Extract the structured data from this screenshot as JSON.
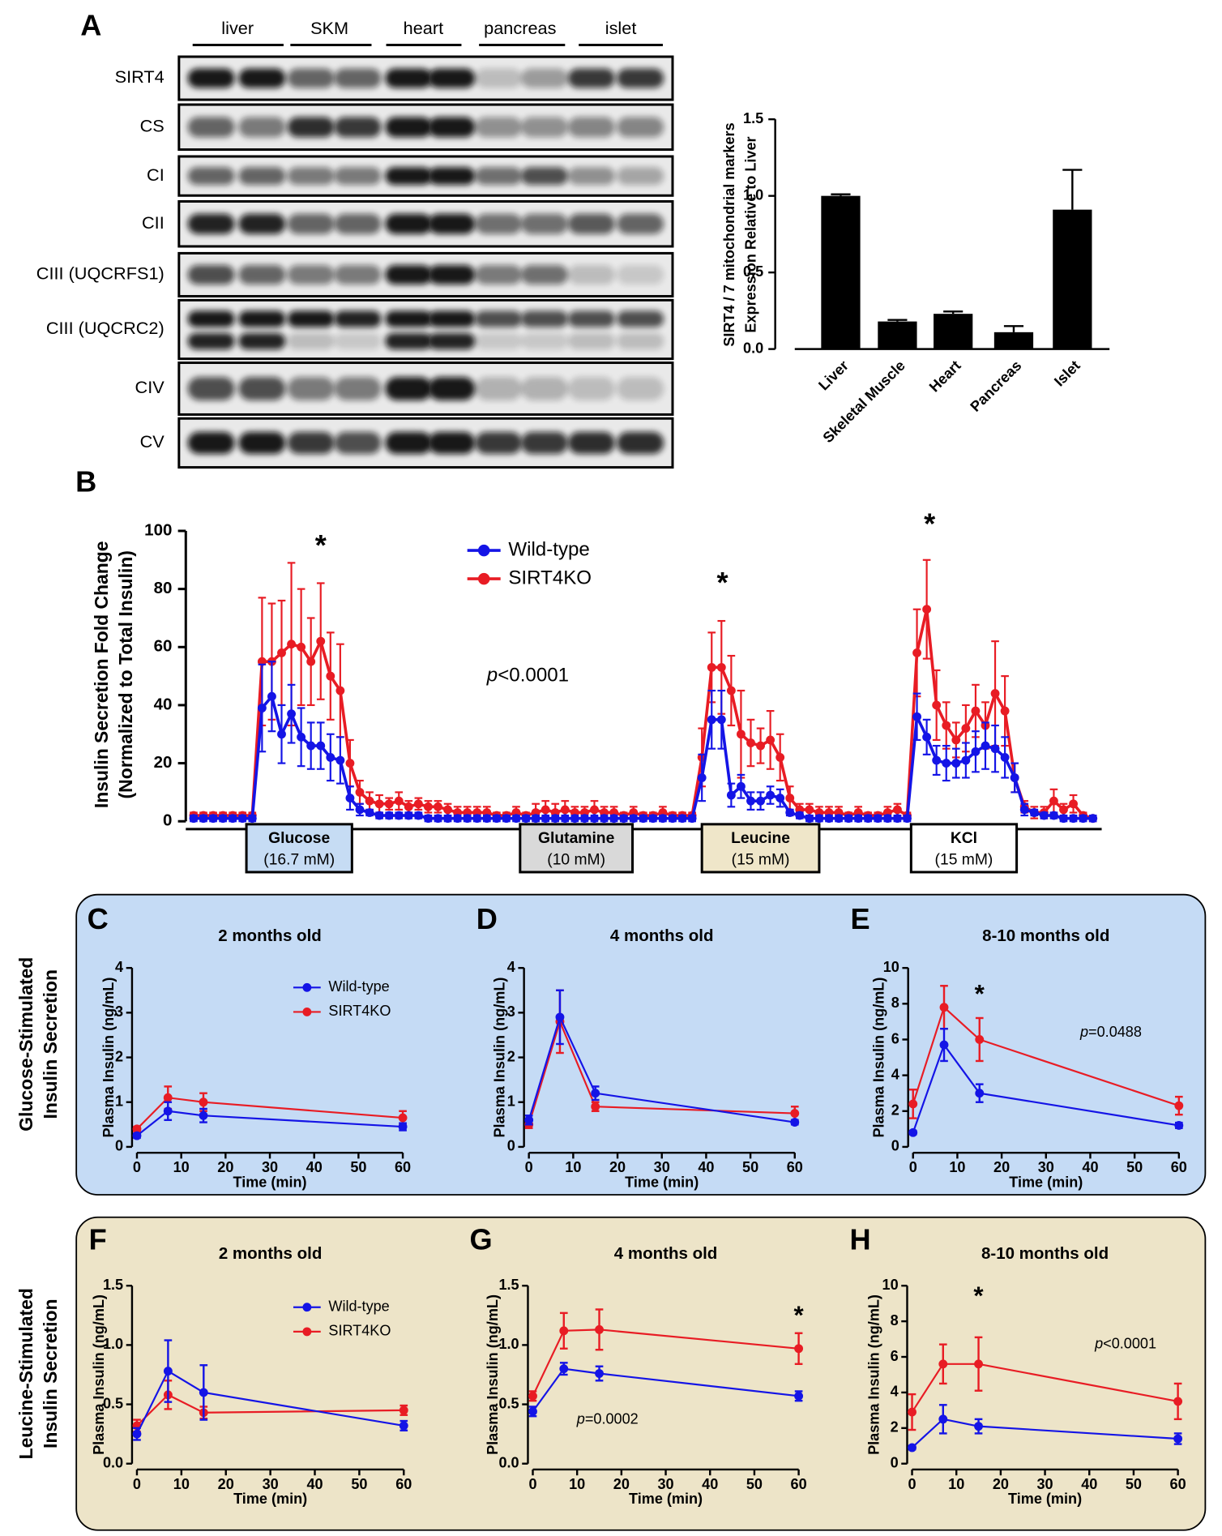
{
  "blot": {
    "panel_label": "A",
    "tissues": [
      "liver",
      "SKM",
      "heart",
      "pancreas",
      "islet"
    ],
    "proteins": [
      "SIRT4",
      "CS",
      "CI",
      "CII",
      "CIII (UQCRFS1)",
      "CIII (UQCRC2)",
      "CIV",
      "CV"
    ]
  },
  "groups": [
    {
      "lines": [
        "Glucose-Stimulated",
        "Insulin  Secretion"
      ]
    },
    {
      "lines": [
        "Leucine-Stimulated",
        "Insulin  Secretion"
      ]
    }
  ],
  "chart_data": [
    {
      "type": "bar",
      "ylabel": [
        "SIRT4 / 7 mitochondrial markers",
        "Expression Relative to Liver"
      ],
      "categories": [
        "Liver",
        "Skeletal Muscle",
        "Heart",
        "Pancreas",
        "Islet"
      ],
      "values": [
        1.0,
        0.18,
        0.23,
        0.11,
        0.91
      ],
      "errors": [
        0.01,
        0.01,
        0.015,
        0.04,
        0.26
      ],
      "color": "#000000",
      "ylim": [
        0,
        1.5
      ],
      "yticks": [
        {
          "value": 0,
          "label": "0.0"
        },
        0.5,
        {
          "value": 1,
          "label": "1.0"
        },
        1.5
      ]
    },
    {
      "type": "line",
      "panel_label": "B",
      "ylabel": [
        "Insulin Secretion Fold Change",
        "(Normalized to Total Insulin)"
      ],
      "ylim": [
        0,
        100
      ],
      "yticks": [
        0,
        20,
        40,
        60,
        80,
        100
      ],
      "series": [
        {
          "name": "Wild-type",
          "color": "#1414e6",
          "values": [
            1,
            1,
            1,
            1,
            1,
            1,
            1,
            39,
            43,
            30,
            37,
            29,
            26,
            26,
            22,
            21,
            8,
            4,
            3,
            2,
            2,
            2,
            2,
            2,
            1,
            1,
            1,
            1,
            1,
            1,
            1,
            1,
            1,
            1,
            1,
            1,
            1,
            1,
            1,
            1,
            1,
            1,
            1,
            1,
            1,
            1,
            1,
            1,
            1,
            1,
            1,
            1,
            15,
            35,
            35,
            9,
            12,
            7,
            7,
            9,
            8,
            3,
            2,
            1,
            1,
            1,
            1,
            1,
            1,
            1,
            1,
            1,
            1,
            1,
            36,
            29,
            21,
            20,
            20,
            21,
            24,
            26,
            25,
            22,
            15,
            4,
            3,
            2,
            2,
            1,
            1,
            1,
            1
          ],
          "errors": [
            1,
            1,
            1,
            1,
            1,
            1,
            1,
            15,
            12,
            10,
            10,
            10,
            8,
            8,
            8,
            8,
            4,
            2,
            1,
            1,
            1,
            1,
            1,
            1,
            1,
            1,
            1,
            1,
            1,
            1,
            1,
            1,
            1,
            1,
            1,
            1,
            1,
            1,
            1,
            1,
            1,
            1,
            1,
            1,
            1,
            1,
            1,
            1,
            1,
            1,
            1,
            1,
            8,
            10,
            10,
            4,
            4,
            3,
            3,
            3,
            3,
            1,
            1,
            1,
            1,
            1,
            1,
            1,
            1,
            1,
            1,
            1,
            1,
            1,
            8,
            6,
            5,
            6,
            5,
            6,
            7,
            8,
            8,
            7,
            5,
            2,
            1,
            1,
            1,
            1,
            1,
            1,
            1
          ]
        },
        {
          "name": "SIRT4KO",
          "color": "#e81c24",
          "values": [
            2,
            2,
            2,
            2,
            2,
            2,
            2,
            55,
            55,
            58,
            61,
            60,
            55,
            62,
            50,
            45,
            20,
            10,
            7,
            6,
            6,
            7,
            5,
            6,
            5,
            5,
            4,
            3,
            3,
            3,
            3,
            2,
            2,
            3,
            2,
            3,
            4,
            3,
            4,
            3,
            3,
            4,
            3,
            3,
            2,
            3,
            2,
            2,
            3,
            2,
            2,
            2,
            22,
            53,
            53,
            45,
            30,
            27,
            26,
            28,
            22,
            8,
            4,
            4,
            3,
            3,
            3,
            2,
            3,
            2,
            2,
            3,
            4,
            2,
            58,
            73,
            40,
            33,
            28,
            32,
            38,
            33,
            44,
            38,
            15,
            5,
            3,
            3,
            7,
            4,
            6,
            2,
            1
          ],
          "errors": [
            1,
            1,
            1,
            1,
            1,
            1,
            1,
            22,
            20,
            18,
            28,
            20,
            15,
            20,
            15,
            16,
            8,
            4,
            3,
            3,
            2,
            3,
            2,
            2,
            2,
            2,
            2,
            2,
            2,
            2,
            2,
            1,
            1,
            2,
            1,
            3,
            3,
            3,
            3,
            2,
            2,
            3,
            2,
            2,
            1,
            2,
            1,
            1,
            2,
            1,
            1,
            1,
            10,
            12,
            16,
            12,
            15,
            8,
            6,
            10,
            8,
            4,
            2,
            2,
            2,
            2,
            2,
            1,
            2,
            1,
            1,
            2,
            2,
            1,
            15,
            17,
            12,
            8,
            6,
            8,
            9,
            8,
            18,
            12,
            5,
            2,
            2,
            2,
            4,
            2,
            3,
            1,
            1
          ]
        }
      ],
      "legend": true,
      "annotations": [
        "*",
        "*",
        "*"
      ],
      "pvalue": {
        "italic": "p",
        "rest": "<0.0001"
      },
      "stimuli": [
        {
          "name": "Glucose",
          "detail": "(16.7 mM)",
          "color": "#c6dcf4"
        },
        {
          "name": "Glutamine",
          "detail": "(10 mM)",
          "color": "#d9d9d9"
        },
        {
          "name": "Leucine",
          "detail": "(15 mM)",
          "color": "#efe6c9"
        },
        {
          "name": "KCl",
          "detail": "(15 mM)",
          "color": "#ffffff"
        }
      ]
    },
    {
      "type": "line",
      "panel_label": "C",
      "title": "2 months old",
      "xlabel": "Time (min)",
      "ylabel": "Plasma Insulin (ng/mL)",
      "x": [
        0,
        7,
        15,
        60
      ],
      "xlim": [
        0,
        60
      ],
      "xticks": [
        0,
        10,
        20,
        30,
        40,
        50,
        60
      ],
      "ylim": [
        0,
        4
      ],
      "yticks": [
        0,
        1,
        2,
        3,
        4
      ],
      "legend": true,
      "series": [
        {
          "name": "Wild-type",
          "color": "#1414e6",
          "values": [
            0.25,
            0.8,
            0.7,
            0.45
          ],
          "errors": [
            0.05,
            0.2,
            0.15,
            0.08
          ]
        },
        {
          "name": "SIRT4KO",
          "color": "#e81c24",
          "values": [
            0.4,
            1.1,
            1.0,
            0.65
          ],
          "errors": [
            0.05,
            0.25,
            0.2,
            0.15
          ]
        }
      ]
    },
    {
      "type": "line",
      "panel_label": "D",
      "title": "4 months old",
      "xlabel": "Time (min)",
      "ylabel": "Plasma Insulin (ng/mL)",
      "x": [
        0,
        7,
        15,
        60
      ],
      "xlim": [
        0,
        60
      ],
      "xticks": [
        0,
        10,
        20,
        30,
        40,
        50,
        60
      ],
      "ylim": [
        0,
        4
      ],
      "yticks": [
        0,
        1,
        2,
        3,
        4
      ],
      "series": [
        {
          "name": "Wild-type",
          "color": "#1414e6",
          "values": [
            0.6,
            2.9,
            1.2,
            0.55
          ],
          "errors": [
            0.1,
            0.6,
            0.15,
            0.05
          ]
        },
        {
          "name": "SIRT4KO",
          "color": "#e81c24",
          "values": [
            0.5,
            2.8,
            0.9,
            0.75
          ],
          "errors": [
            0.08,
            0.7,
            0.1,
            0.15
          ]
        }
      ]
    },
    {
      "type": "line",
      "panel_label": "E",
      "title": "8-10 months old",
      "xlabel": "Time (min)",
      "ylabel": "Plasma Insulin (ng/mL)",
      "x": [
        0,
        7,
        15,
        60
      ],
      "xlim": [
        0,
        60
      ],
      "xticks": [
        0,
        10,
        20,
        30,
        40,
        50,
        60
      ],
      "ylim": [
        0,
        10
      ],
      "yticks": [
        0,
        2,
        4,
        6,
        8,
        10
      ],
      "annotations": [
        "*"
      ],
      "pvalue": {
        "italic": "p",
        "rest": "=0.0488"
      },
      "series": [
        {
          "name": "Wild-type",
          "color": "#1414e6",
          "values": [
            0.8,
            5.7,
            3.0,
            1.2
          ],
          "errors": [
            0.1,
            0.9,
            0.5,
            0.15
          ]
        },
        {
          "name": "SIRT4KO",
          "color": "#e81c24",
          "values": [
            2.4,
            7.8,
            6.0,
            2.3
          ],
          "errors": [
            0.8,
            1.2,
            1.2,
            0.5
          ]
        }
      ]
    },
    {
      "type": "line",
      "panel_label": "F",
      "title": "2 months old",
      "xlabel": "Time (min)",
      "ylabel": "Plasma Insulin (ng/mL)",
      "x": [
        0,
        7,
        15,
        60
      ],
      "xlim": [
        0,
        60
      ],
      "xticks": [
        0,
        10,
        20,
        30,
        40,
        50,
        60
      ],
      "ylim": [
        0,
        1.5
      ],
      "yticks": [
        {
          "value": 0,
          "label": "0.0"
        },
        0.5,
        {
          "value": 1,
          "label": "1.0"
        },
        1.5
      ],
      "legend": true,
      "series": [
        {
          "name": "Wild-type",
          "color": "#1414e6",
          "values": [
            0.25,
            0.78,
            0.6,
            0.32
          ],
          "errors": [
            0.05,
            0.26,
            0.23,
            0.04
          ]
        },
        {
          "name": "SIRT4KO",
          "color": "#e81c24",
          "values": [
            0.32,
            0.58,
            0.43,
            0.45
          ],
          "errors": [
            0.05,
            0.12,
            0.05,
            0.04
          ]
        }
      ]
    },
    {
      "type": "line",
      "panel_label": "G",
      "title": "4 months old",
      "xlabel": "Time (min)",
      "ylabel": "Plasma Insulin (ng/mL)",
      "x": [
        0,
        7,
        15,
        60
      ],
      "xlim": [
        0,
        60
      ],
      "xticks": [
        0,
        10,
        20,
        30,
        40,
        50,
        60
      ],
      "ylim": [
        0,
        1.5
      ],
      "yticks": [
        {
          "value": 0,
          "label": "0.0"
        },
        0.5,
        {
          "value": 1,
          "label": "1.0"
        },
        1.5
      ],
      "annotations": [
        "*"
      ],
      "pvalue": {
        "italic": "p",
        "rest": "=0.0002"
      },
      "series": [
        {
          "name": "Wild-type",
          "color": "#1414e6",
          "values": [
            0.44,
            0.8,
            0.76,
            0.57
          ],
          "errors": [
            0.04,
            0.05,
            0.06,
            0.04
          ]
        },
        {
          "name": "SIRT4KO",
          "color": "#e81c24",
          "values": [
            0.57,
            1.12,
            1.13,
            0.97
          ],
          "errors": [
            0.04,
            0.15,
            0.17,
            0.13
          ]
        }
      ]
    },
    {
      "type": "line",
      "panel_label": "H",
      "title": "8-10 months old",
      "xlabel": "Time (min)",
      "ylabel": "Plasma Insulin (ng/mL)",
      "x": [
        0,
        7,
        15,
        60
      ],
      "xlim": [
        0,
        60
      ],
      "xticks": [
        0,
        10,
        20,
        30,
        40,
        50,
        60
      ],
      "ylim": [
        0,
        10
      ],
      "yticks": [
        0,
        2,
        4,
        6,
        8,
        10
      ],
      "annotations": [
        "*"
      ],
      "pvalue": {
        "italic": "p",
        "rest": "<0.0001"
      },
      "series": [
        {
          "name": "Wild-type",
          "color": "#1414e6",
          "values": [
            0.9,
            2.5,
            2.1,
            1.4
          ],
          "errors": [
            0.1,
            0.8,
            0.4,
            0.3
          ]
        },
        {
          "name": "SIRT4KO",
          "color": "#e81c24",
          "values": [
            2.9,
            5.6,
            5.6,
            3.5
          ],
          "errors": [
            1.0,
            1.1,
            1.5,
            1.0
          ]
        }
      ]
    }
  ]
}
